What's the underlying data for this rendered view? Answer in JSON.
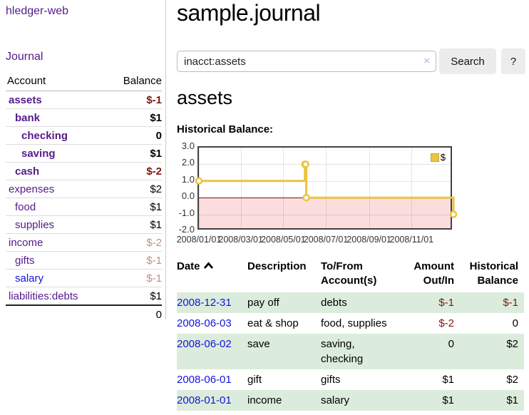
{
  "sidebar": {
    "app_title": "hledger-web",
    "journal_link": "Journal",
    "accounts_table": {
      "headers": {
        "account": "Account",
        "balance": "Balance"
      },
      "rows": [
        {
          "name": "assets",
          "balance": "$-1",
          "indent": 1,
          "selected": true
        },
        {
          "name": "bank",
          "balance": "$1",
          "indent": 2,
          "selected": true
        },
        {
          "name": "checking",
          "balance": "0",
          "indent": 3,
          "selected": true
        },
        {
          "name": "saving",
          "balance": "$1",
          "indent": 3,
          "selected": true
        },
        {
          "name": "cash",
          "balance": "$-2",
          "indent": 2,
          "selected": true
        },
        {
          "name": "expenses",
          "balance": "$2",
          "indent": 1,
          "selected": false
        },
        {
          "name": "food",
          "balance": "$1",
          "indent": 2,
          "selected": false
        },
        {
          "name": "supplies",
          "balance": "$1",
          "indent": 2,
          "selected": false
        },
        {
          "name": "income",
          "balance": "$-2",
          "indent": 1,
          "selected": false
        },
        {
          "name": "gifts",
          "balance": "$-1",
          "indent": 2,
          "selected": false
        },
        {
          "name": "salary",
          "balance": "$-1",
          "indent": 2,
          "selected": false,
          "unvisited": true
        },
        {
          "name": "liabilities:debts",
          "balance": "$1",
          "indent": 1,
          "selected": false
        }
      ],
      "total": "0"
    }
  },
  "header": {
    "title": "sample.journal"
  },
  "search": {
    "query": "inacct:assets",
    "clear_icon": "×",
    "button_label": "Search",
    "help_label": "?"
  },
  "account_page": {
    "heading": "assets",
    "chart_label": "Historical Balance:"
  },
  "chart_data": {
    "type": "line",
    "step": true,
    "title": "Historical Balance",
    "series": [
      {
        "name": "$",
        "color": "#edc240",
        "points": [
          {
            "date": "2008-01-01",
            "day": 0,
            "value": 1
          },
          {
            "date": "2008-06-01",
            "day": 152,
            "value": 2
          },
          {
            "date": "2008-06-02",
            "day": 153,
            "value": 2
          },
          {
            "date": "2008-06-03",
            "day": 154,
            "value": 0
          },
          {
            "date": "2008-12-31",
            "day": 365,
            "value": -1
          }
        ]
      }
    ],
    "ylim": [
      -2,
      3
    ],
    "xlim_days": [
      0,
      365
    ],
    "yticks": [
      {
        "label": "3.0",
        "value": 3
      },
      {
        "label": "2.0",
        "value": 2
      },
      {
        "label": "1.0",
        "value": 1
      },
      {
        "label": "0.0",
        "value": 0
      },
      {
        "label": "-1.0",
        "value": -1
      },
      {
        "label": "-2.0",
        "value": -2
      }
    ],
    "xticks": [
      {
        "label": "2008/01/01",
        "day": 0
      },
      {
        "label": "2008/03/01",
        "day": 60
      },
      {
        "label": "2008/05/01",
        "day": 121
      },
      {
        "label": "2008/07/01",
        "day": 182
      },
      {
        "label": "2008/09/01",
        "day": 244
      },
      {
        "label": "2008/11/01",
        "day": 305
      }
    ],
    "legend": {
      "label": "$",
      "position": "top-right"
    },
    "grid": true,
    "negative_region_color": "#fbdddd",
    "zero_line_color": "#7f0f0f"
  },
  "register_table": {
    "columns": [
      {
        "label": "Date",
        "sorted": "asc",
        "align": "left"
      },
      {
        "label": "Description",
        "align": "left"
      },
      {
        "label": "To/From Account(s)",
        "align": "left"
      },
      {
        "label": "Amount Out/In",
        "align": "right"
      },
      {
        "label": "Historical Balance",
        "align": "right"
      }
    ],
    "rows": [
      {
        "date": "2008-12-31",
        "description": "pay off",
        "accounts": "debts",
        "amount": "$-1",
        "balance": "$-1"
      },
      {
        "date": "2008-06-03",
        "description": "eat & shop",
        "accounts": "food, supplies",
        "amount": "$-2",
        "balance": "0"
      },
      {
        "date": "2008-06-02",
        "description": "save",
        "accounts": "saving, checking",
        "amount": "0",
        "balance": "$2"
      },
      {
        "date": "2008-06-01",
        "description": "gift",
        "accounts": "gifts",
        "amount": "$1",
        "balance": "$2"
      },
      {
        "date": "2008-01-01",
        "description": "income",
        "accounts": "salary",
        "amount": "$1",
        "balance": "$1"
      }
    ]
  }
}
